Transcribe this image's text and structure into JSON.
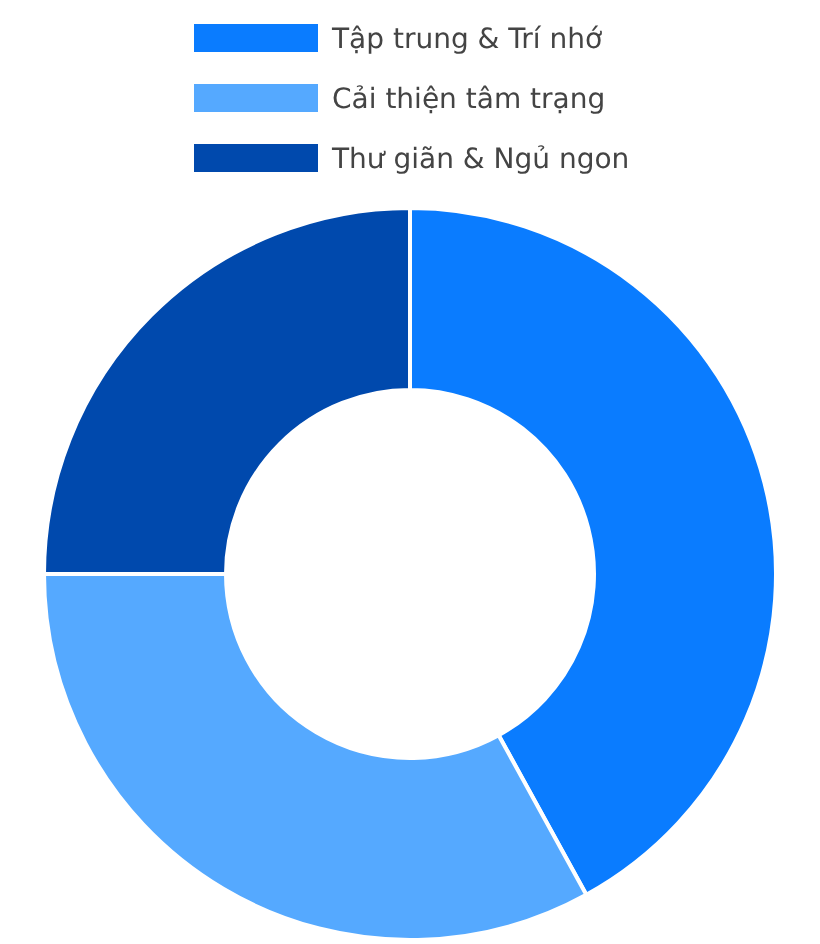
{
  "chart_data": {
    "type": "donut",
    "categories": [
      "Tập trung & Trí nhớ",
      "Cải thiện tâm trạng",
      "Thư giãn & Ngủ ngon"
    ],
    "values": [
      42,
      33,
      25
    ],
    "colors": [
      "#0a7cff",
      "#55a9ff",
      "#0049ad"
    ],
    "legend": "top"
  }
}
